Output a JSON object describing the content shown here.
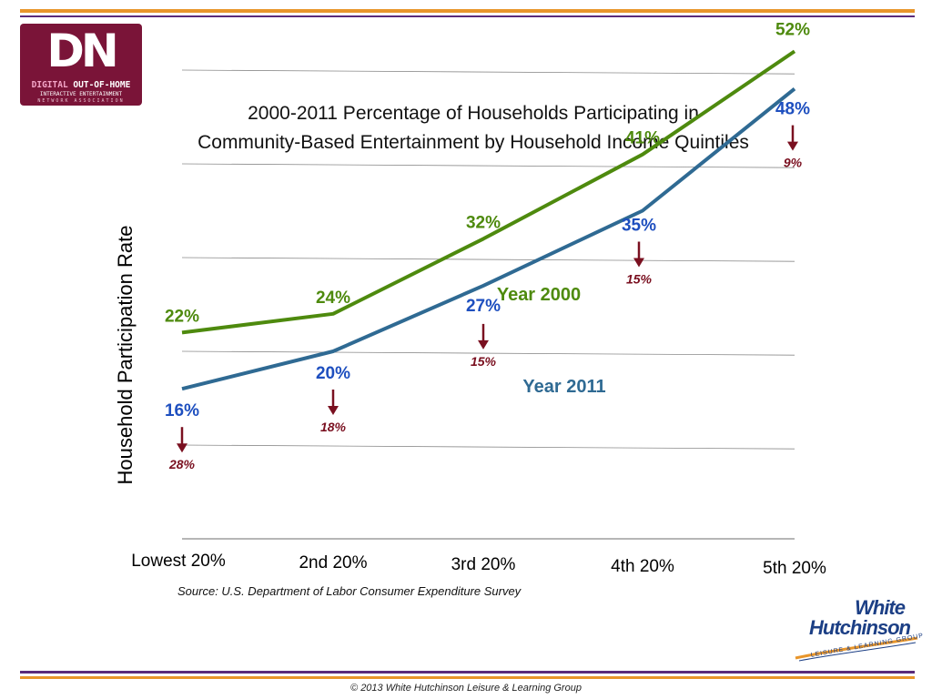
{
  "logo": {
    "letters": "DN",
    "line1_a": "DIGITAL",
    "line1_b": "OUT-OF-HOME",
    "line2": "INTERACTIVE ENTERTAINMENT",
    "line3": "NETWORK ASSOCIATION"
  },
  "brand_logo": {
    "line1": "White",
    "line2": "Hutchinson",
    "tagline": "LEISURE & LEARNING GROUP"
  },
  "colors": {
    "series_2000": "#4e8a0e",
    "series_2011": "#2f6a93",
    "label_2011": "#1e4fbf",
    "drop": "#7a1020",
    "rule_orange": "#e8952a",
    "rule_purple": "#5a2a7a",
    "gridline": "#8a8a8a"
  },
  "chart_data": {
    "type": "line",
    "title": "2000-2011 Percentage of Households Participating in Community-Based Entertainment by Household Income Quintiles",
    "title_lines": [
      "2000-2011 Percentage of Households Participating in",
      "Community-Based Entertainment by Household Income Quintiles"
    ],
    "ylabel": "Household Participation Rate",
    "xlabel": "",
    "categories": [
      "Lowest 20%",
      "2nd 20%",
      "3rd 20%",
      "4th 20%",
      "5th 20%"
    ],
    "series": [
      {
        "name": "Year 2000",
        "values": [
          22,
          24,
          32,
          41,
          52
        ],
        "labels": [
          "22%",
          "24%",
          "32%",
          "41%",
          "52%"
        ]
      },
      {
        "name": "Year 2011",
        "values": [
          16,
          20,
          27,
          35,
          48
        ],
        "labels": [
          "16%",
          "20%",
          "27%",
          "35%",
          "48%"
        ]
      }
    ],
    "declines": [
      "28%",
      "18%",
      "15%",
      "15%",
      "9%"
    ],
    "ylim": [
      0,
      60
    ],
    "grid": true,
    "source": "Source: U.S. Department of Labor Consumer Expenditure Survey"
  },
  "footer": "© 2013 White Hutchinson Leisure & Learning Group"
}
